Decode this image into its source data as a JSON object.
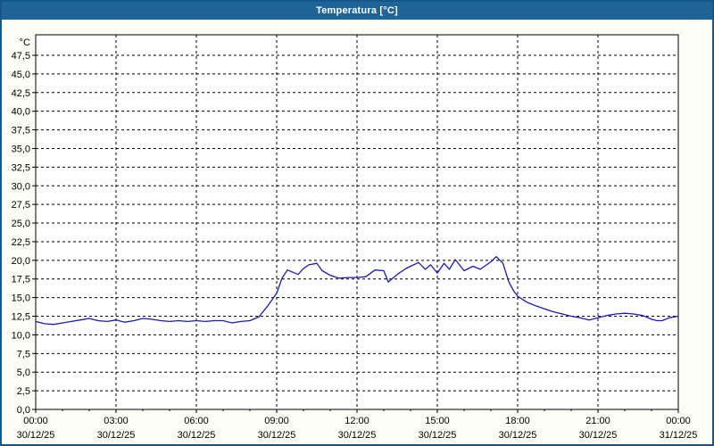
{
  "window": {
    "title": "Temperatura [°C]",
    "title_bar_color": "#1F6496",
    "border_color": "#17568C",
    "background_color": "#FCFDF5"
  },
  "chart_data": {
    "type": "line",
    "title": "Temperatura [°C]",
    "plot_background": "#FFFFFF",
    "grid": {
      "on": true,
      "style": "dashed",
      "color": "#000000"
    },
    "line_color": "#1B1BB4",
    "y_axis": {
      "label": "°C",
      "min": 0,
      "max": 47.5,
      "tick_step": 2.5,
      "decimal_separator": ",",
      "tick_labels": [
        "0,0",
        "2,5",
        "5,0",
        "7,5",
        "10,0",
        "12,5",
        "15,0",
        "17,5",
        "20,0",
        "22,5",
        "25,0",
        "27,5",
        "30,0",
        "32,5",
        "35,0",
        "37,5",
        "40,0",
        "42,5",
        "45,0",
        "47,5"
      ]
    },
    "x_axis": {
      "span_hours": 24,
      "major_tick_hours": 3,
      "minor_tick_hours": 1,
      "ticks": [
        {
          "hour": 0,
          "time": "00:00",
          "date": "30/12/25"
        },
        {
          "hour": 3,
          "time": "03:00",
          "date": "30/12/25"
        },
        {
          "hour": 6,
          "time": "06:00",
          "date": "30/12/25"
        },
        {
          "hour": 9,
          "time": "09:00",
          "date": "30/12/25"
        },
        {
          "hour": 12,
          "time": "12:00",
          "date": "30/12/25"
        },
        {
          "hour": 15,
          "time": "15:00",
          "date": "30/12/25"
        },
        {
          "hour": 18,
          "time": "18:00",
          "date": "30/12/25"
        },
        {
          "hour": 21,
          "time": "21:00",
          "date": "30/12/25"
        },
        {
          "hour": 24,
          "time": "00:00",
          "date": "31/12/25"
        }
      ]
    },
    "series": [
      {
        "name": "Temperatura",
        "unit": "°C",
        "points": [
          [
            0,
            11.8
          ],
          [
            0.33,
            11.5
          ],
          [
            0.67,
            11.4
          ],
          [
            1,
            11.6
          ],
          [
            1.33,
            11.8
          ],
          [
            1.67,
            12.0
          ],
          [
            2,
            12.2
          ],
          [
            2.33,
            11.9
          ],
          [
            2.67,
            11.8
          ],
          [
            3,
            12.0
          ],
          [
            3.33,
            11.7
          ],
          [
            3.67,
            11.9
          ],
          [
            4,
            12.2
          ],
          [
            4.33,
            12.1
          ],
          [
            4.67,
            11.9
          ],
          [
            5,
            11.8
          ],
          [
            5.33,
            11.9
          ],
          [
            5.67,
            11.8
          ],
          [
            6,
            11.9
          ],
          [
            6.33,
            11.8
          ],
          [
            6.67,
            11.9
          ],
          [
            7,
            11.9
          ],
          [
            7.33,
            11.6
          ],
          [
            7.67,
            11.8
          ],
          [
            8,
            11.9
          ],
          [
            8.33,
            12.4
          ],
          [
            8.67,
            13.9
          ],
          [
            9,
            15.6
          ],
          [
            9.2,
            17.6
          ],
          [
            9.4,
            18.7
          ],
          [
            9.6,
            18.4
          ],
          [
            9.8,
            18.1
          ],
          [
            10,
            18.9
          ],
          [
            10.2,
            19.4
          ],
          [
            10.5,
            19.6
          ],
          [
            10.7,
            18.6
          ],
          [
            11,
            18.0
          ],
          [
            11.33,
            17.6
          ],
          [
            11.67,
            17.7
          ],
          [
            12,
            17.7
          ],
          [
            12.33,
            17.8
          ],
          [
            12.67,
            18.7
          ],
          [
            13,
            18.6
          ],
          [
            13.17,
            17.1
          ],
          [
            13.5,
            18.1
          ],
          [
            13.83,
            18.9
          ],
          [
            14,
            19.2
          ],
          [
            14.3,
            19.7
          ],
          [
            14.55,
            18.8
          ],
          [
            14.75,
            19.4
          ],
          [
            15,
            18.3
          ],
          [
            15.25,
            19.6
          ],
          [
            15.45,
            18.8
          ],
          [
            15.67,
            20.1
          ],
          [
            16,
            18.6
          ],
          [
            16.33,
            19.2
          ],
          [
            16.6,
            18.8
          ],
          [
            17,
            19.8
          ],
          [
            17.2,
            20.5
          ],
          [
            17.45,
            19.6
          ],
          [
            17.67,
            17.1
          ],
          [
            17.85,
            15.9
          ],
          [
            18,
            15.2
          ],
          [
            18.33,
            14.4
          ],
          [
            18.67,
            13.9
          ],
          [
            19,
            13.5
          ],
          [
            19.33,
            13.1
          ],
          [
            19.67,
            12.8
          ],
          [
            20,
            12.5
          ],
          [
            20.33,
            12.3
          ],
          [
            20.67,
            12.0
          ],
          [
            21,
            12.3
          ],
          [
            21.33,
            12.6
          ],
          [
            21.67,
            12.8
          ],
          [
            22,
            12.9
          ],
          [
            22.33,
            12.8
          ],
          [
            22.67,
            12.6
          ],
          [
            23,
            12.1
          ],
          [
            23.2,
            11.9
          ],
          [
            23.4,
            11.9
          ],
          [
            23.67,
            12.3
          ],
          [
            24,
            12.5
          ]
        ]
      }
    ]
  }
}
